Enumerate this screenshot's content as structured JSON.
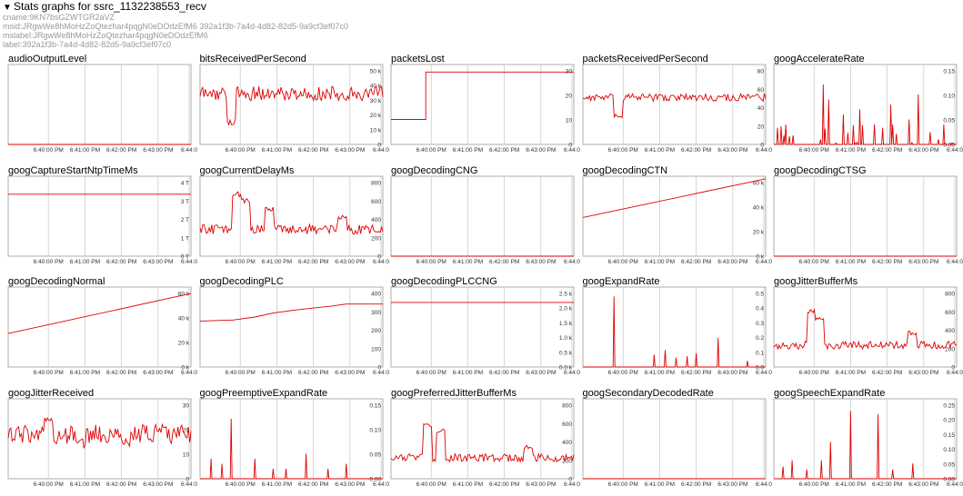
{
  "header": {
    "summary": "Stats graphs for ssrc_1132238553_recv",
    "cname": "cname:9KN7bsGZWTGR2aVZ",
    "msid": "msid:JRgwWe8hMoHzZoQtezhar4pqgN0eDOdzEfM6 392a1f3b-7a4d-4d82-82d5-9a9cf3ef07c0",
    "mslabel": "mslabel:JRgwWe8hMoHzZoQtezhar4pqgN0eDOdzEfM6",
    "label": "label:392a1f3b-7a4d-4d82-82d5-9a9cf3ef07c0"
  },
  "style": {
    "line_color": "#dd0000",
    "grid_color": "#cccccc",
    "border_color": "#999999"
  },
  "chart_data": [
    {
      "type": "line",
      "title": "audioOutputLevel",
      "x_ticks": [
        "6:40:00 PM",
        "6:41:00 PM",
        "6:42:00 PM",
        "6:43:00 PM",
        "6:44:0"
      ],
      "y_ticks": [],
      "ylim": [
        0,
        1
      ],
      "series": {
        "kind": "flat",
        "value": 0
      }
    },
    {
      "type": "line",
      "title": "bitsReceivedPerSecond",
      "x_ticks": [
        "6:40:00 PM",
        "6:41:00 PM",
        "6:42:00 PM",
        "6:43:00 PM",
        "6:44:0"
      ],
      "y_ticks": [
        "0",
        "10 k",
        "20 k",
        "30 k",
        "40 k",
        "50 k"
      ],
      "ylim": [
        0,
        55000
      ],
      "series": {
        "kind": "noise",
        "value": 35000,
        "amp": 5000,
        "spikes": [
          [
            0.17,
            15000
          ]
        ]
      }
    },
    {
      "type": "line",
      "title": "packetsLost",
      "x_ticks": [
        "6:40:00 PM",
        "6:41:00 PM",
        "6:42:00 PM",
        "6:43:00 PM",
        "6:44:0"
      ],
      "y_ticks": [
        "0",
        "10",
        "20",
        "30"
      ],
      "ylim": [
        0,
        32
      ],
      "series": {
        "kind": "step",
        "points": [
          [
            0,
            10
          ],
          [
            0.19,
            10
          ],
          [
            0.19,
            29
          ],
          [
            1,
            29
          ]
        ]
      }
    },
    {
      "type": "line",
      "title": "packetsReceivedPerSecond",
      "x_ticks": [
        "6:40:00 PM",
        "6:41:00 PM",
        "6:42:00 PM",
        "6:43:00 PM",
        "6:44:0"
      ],
      "y_ticks": [
        "0",
        "20",
        "40",
        "60",
        "80"
      ],
      "ylim": [
        0,
        85
      ],
      "series": {
        "kind": "noise",
        "value": 50,
        "amp": 4,
        "spikes": [
          [
            0.19,
            30
          ]
        ]
      }
    },
    {
      "type": "line",
      "title": "googAccelerateRate",
      "x_ticks": [
        "6:40:00 PM",
        "6:41:00 PM",
        "6:42:00 PM",
        "6:43:00 PM",
        "6:44:0"
      ],
      "y_ticks": [
        "0.00",
        "0.05",
        "0.10",
        "0.15"
      ],
      "ylim": [
        0,
        0.16
      ],
      "series": {
        "kind": "spiky",
        "value": 0.0,
        "amp": 0.04,
        "spikes": [
          [
            0.27,
            0.12
          ],
          [
            0.3,
            0.09
          ],
          [
            0.38,
            0.06
          ],
          [
            0.47,
            0.07
          ],
          [
            0.55,
            0.04
          ],
          [
            0.64,
            0.08
          ],
          [
            0.74,
            0.05
          ],
          [
            0.79,
            0.1
          ],
          [
            0.93,
            0.04
          ]
        ]
      }
    },
    {
      "type": "line",
      "title": "googCaptureStartNtpTimeMs",
      "x_ticks": [
        "6:40:00 PM",
        "6:41:00 PM",
        "6:42:00 PM",
        "6:43:00 PM",
        "6:44:0"
      ],
      "y_ticks": [
        "0 T",
        "1 T",
        "2 T",
        "3 T",
        "4 T"
      ],
      "ylim": [
        0,
        4
      ],
      "series": {
        "kind": "flat",
        "value": 3.1
      }
    },
    {
      "type": "line",
      "title": "googCurrentDelayMs",
      "x_ticks": [
        "6:40:00 PM",
        "6:41:00 PM",
        "6:42:00 PM",
        "6:43:00 PM",
        "6:44:0"
      ],
      "y_ticks": [
        "0",
        "200",
        "400",
        "600",
        "800"
      ],
      "ylim": [
        0,
        800
      ],
      "series": {
        "kind": "noise",
        "value": 270,
        "amp": 50,
        "spikes": [
          [
            0.2,
            620
          ],
          [
            0.25,
            550
          ],
          [
            0.38,
            470
          ],
          [
            0.78,
            390
          ]
        ]
      }
    },
    {
      "type": "line",
      "title": "googDecodingCNG",
      "x_ticks": [
        "6:40:00 PM",
        "6:41:00 PM",
        "6:42:00 PM",
        "6:43:00 PM",
        "6:44:0"
      ],
      "y_ticks": [],
      "ylim": [
        0,
        1
      ],
      "series": {
        "kind": "flat",
        "value": 0
      }
    },
    {
      "type": "line",
      "title": "googDecodingCTN",
      "x_ticks": [
        "6:40:00 PM",
        "6:41:00 PM",
        "6:42:00 PM",
        "6:43:00 PM",
        "6:44:0"
      ],
      "y_ticks": [
        "0 k",
        "20 k",
        "40 k",
        "60 k"
      ],
      "ylim": [
        0,
        62
      ],
      "series": {
        "kind": "ramp",
        "from": 30,
        "to": 60
      }
    },
    {
      "type": "line",
      "title": "googDecodingCTSG",
      "x_ticks": [
        "6:40:00 PM",
        "6:41:00 PM",
        "6:42:00 PM",
        "6:43:00 PM",
        "6:44:0"
      ],
      "y_ticks": [],
      "ylim": [
        0,
        1
      ],
      "series": {
        "kind": "flat",
        "value": 0
      }
    },
    {
      "type": "line",
      "title": "googDecodingNormal",
      "x_ticks": [
        "6:40:00 PM",
        "6:41:00 PM",
        "6:42:00 PM",
        "6:43:00 PM",
        "6:44:0"
      ],
      "y_ticks": [
        "0 k",
        "20 k",
        "40 k",
        "60 k"
      ],
      "ylim": [
        0,
        62
      ],
      "series": {
        "kind": "ramp",
        "from": 26,
        "to": 57
      }
    },
    {
      "type": "line",
      "title": "googDecodingPLC",
      "x_ticks": [
        "6:40:00 PM",
        "6:41:00 PM",
        "6:42:00 PM",
        "6:43:00 PM",
        "6:44:0"
      ],
      "y_ticks": [
        "0",
        "100",
        "200",
        "300",
        "400"
      ],
      "ylim": [
        0,
        400
      ],
      "series": {
        "kind": "step",
        "points": [
          [
            0,
            230
          ],
          [
            0.18,
            235
          ],
          [
            0.3,
            250
          ],
          [
            0.4,
            270
          ],
          [
            0.52,
            285
          ],
          [
            0.62,
            295
          ],
          [
            0.72,
            305
          ],
          [
            0.8,
            315
          ],
          [
            1,
            315
          ]
        ]
      }
    },
    {
      "type": "line",
      "title": "googDecodingPLCCNG",
      "x_ticks": [
        "6:40:00 PM",
        "6:41:00 PM",
        "6:42:00 PM",
        "6:43:00 PM",
        "6:44:0"
      ],
      "y_ticks": [
        "0.0 k",
        "0.5 k",
        "1.0 k",
        "1.5 k",
        "2.0 k",
        "2.5 k"
      ],
      "ylim": [
        0,
        2.6
      ],
      "series": {
        "kind": "flat",
        "value": 2.1
      }
    },
    {
      "type": "line",
      "title": "googExpandRate",
      "x_ticks": [
        "6:40:00 PM",
        "6:41:00 PM",
        "6:42:00 PM",
        "6:43:00 PM",
        "6:44:0"
      ],
      "y_ticks": [
        "0.0",
        "0.1",
        "0.2",
        "0.3",
        "0.4",
        "0.5"
      ],
      "ylim": [
        0,
        0.52
      ],
      "series": {
        "kind": "spiky",
        "value": 0.0,
        "amp": 0.0,
        "spikes": [
          [
            0.17,
            0.46
          ],
          [
            0.39,
            0.08
          ],
          [
            0.45,
            0.11
          ],
          [
            0.51,
            0.06
          ],
          [
            0.57,
            0.07
          ],
          [
            0.62,
            0.09
          ],
          [
            0.74,
            0.19
          ],
          [
            0.9,
            0.04
          ]
        ]
      }
    },
    {
      "type": "line",
      "title": "googJitterBufferMs",
      "x_ticks": [
        "6:40:00 PM",
        "6:41:00 PM",
        "6:42:00 PM",
        "6:43:00 PM",
        "6:44:0"
      ],
      "y_ticks": [
        "0",
        "200",
        "400",
        "600",
        "800"
      ],
      "ylim": [
        0,
        800
      ],
      "series": {
        "kind": "noise",
        "value": 220,
        "amp": 40,
        "spikes": [
          [
            0.21,
            560
          ],
          [
            0.25,
            480
          ],
          [
            0.76,
            340
          ]
        ]
      }
    },
    {
      "type": "line",
      "title": "googJitterReceived",
      "x_ticks": [
        "6:40:00 PM",
        "6:41:00 PM",
        "6:42:00 PM",
        "6:43:00 PM",
        "6:44:0"
      ],
      "y_ticks": [
        "0",
        "10",
        "20",
        "30"
      ],
      "ylim": [
        0,
        32
      ],
      "series": {
        "kind": "noise",
        "value": 18,
        "amp": 4,
        "spikes": [
          [
            0.22,
            24
          ],
          [
            0.4,
            14
          ],
          [
            0.64,
            14
          ]
        ]
      }
    },
    {
      "type": "line",
      "title": "googPreemptiveExpandRate",
      "x_ticks": [
        "6:40:00 PM",
        "6:41:00 PM",
        "6:42:00 PM",
        "6:43:00 PM",
        "6:44:0"
      ],
      "y_ticks": [
        "0.00",
        "0.05",
        "0.10",
        "0.15"
      ],
      "ylim": [
        0,
        0.16
      ],
      "series": {
        "kind": "spiky",
        "value": 0.0,
        "amp": 0.0,
        "spikes": [
          [
            0.06,
            0.04
          ],
          [
            0.12,
            0.03
          ],
          [
            0.17,
            0.12
          ],
          [
            0.3,
            0.04
          ],
          [
            0.4,
            0.02
          ],
          [
            0.47,
            0.02
          ],
          [
            0.58,
            0.05
          ],
          [
            0.7,
            0.02
          ],
          [
            0.8,
            0.03
          ]
        ]
      }
    },
    {
      "type": "line",
      "title": "googPreferredJitterBufferMs",
      "x_ticks": [
        "6:40:00 PM",
        "6:41:00 PM",
        "6:42:00 PM",
        "6:43:00 PM",
        "6:44:0"
      ],
      "y_ticks": [
        "0",
        "200",
        "400",
        "600",
        "800"
      ],
      "ylim": [
        0,
        800
      ],
      "series": {
        "kind": "noise",
        "value": 210,
        "amp": 40,
        "spikes": [
          [
            0.2,
            530
          ],
          [
            0.27,
            480
          ],
          [
            0.75,
            320
          ]
        ]
      }
    },
    {
      "type": "line",
      "title": "googSecondaryDecodedRate",
      "x_ticks": [
        "6:40:00 PM",
        "6:41:00 PM",
        "6:42:00 PM",
        "6:43:00 PM",
        "6:44:0"
      ],
      "y_ticks": [],
      "ylim": [
        0,
        1
      ],
      "series": {
        "kind": "flat",
        "value": 0
      }
    },
    {
      "type": "line",
      "title": "googSpeechExpandRate",
      "x_ticks": [
        "6:40:00 PM",
        "6:41:00 PM",
        "6:42:00 PM",
        "6:43:00 PM",
        "6:44:0"
      ],
      "y_ticks": [
        "0.00",
        "0.05",
        "0.10",
        "0.15",
        "0.20",
        "0.25"
      ],
      "ylim": [
        0,
        0.26
      ],
      "series": {
        "kind": "spiky",
        "value": 0.0,
        "amp": 0.0,
        "spikes": [
          [
            0.05,
            0.04
          ],
          [
            0.1,
            0.06
          ],
          [
            0.18,
            0.03
          ],
          [
            0.26,
            0.06
          ],
          [
            0.31,
            0.12
          ],
          [
            0.42,
            0.22
          ],
          [
            0.57,
            0.21
          ],
          [
            0.65,
            0.03
          ],
          [
            0.76,
            0.05
          ]
        ]
      }
    }
  ]
}
